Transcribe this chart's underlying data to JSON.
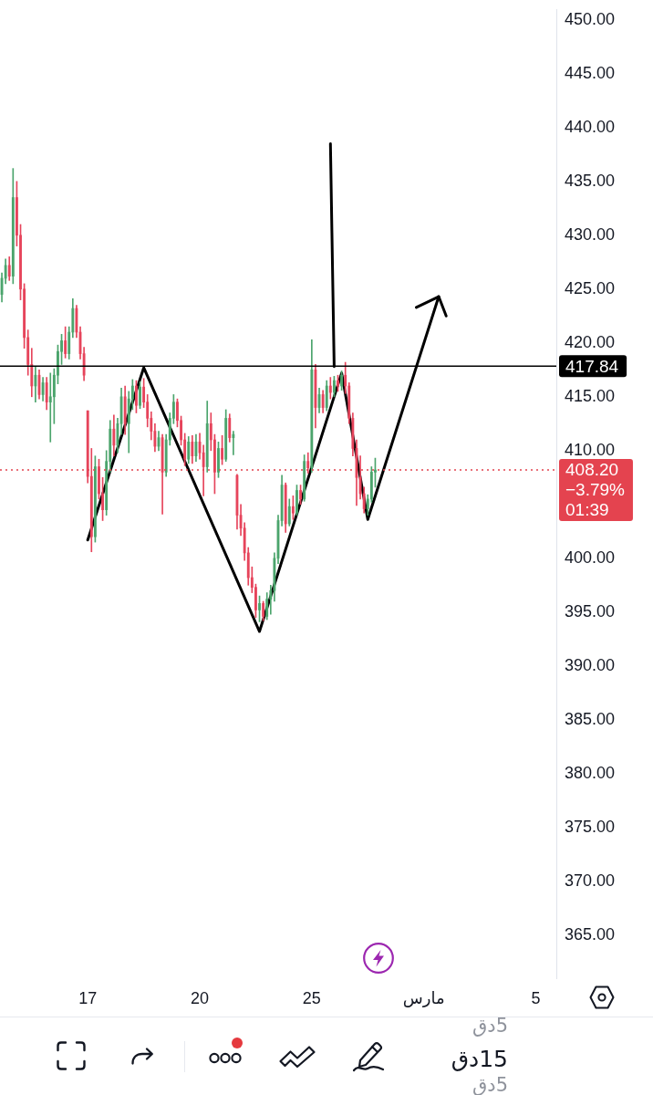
{
  "chart_data": {
    "type": "candlestick",
    "categories": [
      null,
      null,
      null,
      null,
      null,
      null,
      null,
      null,
      null,
      null,
      null,
      null,
      null,
      null,
      null,
      null,
      null,
      null,
      null,
      null,
      null,
      null,
      null,
      "17",
      null,
      null,
      null,
      null,
      null,
      null,
      null,
      null,
      null,
      null,
      null,
      null,
      null,
      null,
      null,
      null,
      null,
      null,
      null,
      null,
      null,
      null,
      null,
      null,
      null,
      null,
      null,
      null,
      null,
      "20",
      null,
      null,
      null,
      null,
      null,
      null,
      null,
      null,
      null,
      null,
      null,
      null,
      null,
      null,
      null,
      null,
      null,
      null,
      null,
      null,
      null,
      null,
      null,
      null,
      null,
      null,
      null,
      null,
      null,
      "25",
      null,
      null,
      null,
      null,
      null,
      null,
      null,
      null,
      null,
      null,
      null,
      null,
      null,
      null,
      null,
      null,
      null,
      null,
      null,
      null,
      null,
      null,
      null,
      null,
      null,
      null,
      null,
      null,
      null,
      "مارس",
      null,
      null,
      null,
      null,
      null,
      null,
      null,
      null,
      null,
      null,
      null,
      null,
      null,
      null,
      null,
      null,
      null,
      null,
      null,
      null,
      null,
      null,
      null,
      null,
      null,
      null,
      null,
      null,
      null,
      "5",
      null,
      null,
      null,
      null,
      null
    ],
    "ohlc": [
      [
        424.5,
        426.5,
        423.8,
        426.0
      ],
      [
        426.0,
        427.8,
        425.5,
        427.2
      ],
      [
        427.2,
        428.0,
        425.8,
        426.2
      ],
      [
        426.2,
        436.2,
        425.5,
        433.5
      ],
      [
        433.5,
        435.0,
        429.0,
        430.0
      ],
      [
        430.0,
        431.0,
        424.0,
        425.0
      ],
      [
        425.0,
        425.5,
        419.5,
        420.5
      ],
      [
        420.5,
        421.2,
        417.0,
        418.0
      ],
      [
        418.0,
        419.5,
        415.0,
        416.0
      ],
      [
        416.0,
        417.8,
        414.5,
        417.0
      ],
      [
        417.0,
        417.5,
        414.8,
        415.2
      ],
      [
        415.2,
        416.8,
        414.6,
        416.3
      ],
      [
        416.3,
        416.8,
        413.8,
        414.5
      ],
      [
        414.5,
        417.2,
        410.8,
        415.0
      ],
      [
        415.0,
        417.6,
        412.5,
        417.0
      ],
      [
        417.0,
        419.8,
        416.2,
        419.2
      ],
      [
        419.2,
        420.8,
        418.0,
        420.2
      ],
      [
        420.2,
        421.5,
        418.6,
        419.0
      ],
      [
        419.0,
        421.5,
        418.5,
        421.0
      ],
      [
        421.0,
        424.1,
        420.5,
        423.2
      ],
      [
        423.2,
        423.5,
        420.5,
        421.0
      ],
      [
        421.0,
        421.5,
        418.5,
        419.0
      ],
      [
        419.0,
        419.6,
        416.5,
        417.0
      ],
      [
        413.7,
        413.7,
        407.0,
        407.6
      ],
      [
        407.6,
        410.2,
        400.6,
        402.0
      ],
      [
        402.0,
        409.5,
        401.5,
        408.5
      ],
      [
        408.5,
        409.2,
        405.5,
        406.0
      ],
      [
        406.0,
        407.5,
        403.5,
        404.5
      ],
      [
        404.5,
        410.0,
        404.0,
        409.0
      ],
      [
        409.0,
        412.8,
        408.0,
        412.0
      ],
      [
        412.0,
        413.3,
        409.5,
        410.5
      ],
      [
        410.5,
        413.0,
        409.8,
        412.5
      ],
      [
        412.5,
        415.8,
        411.5,
        415.0
      ],
      [
        415.0,
        416.0,
        411.5,
        412.5
      ],
      [
        412.5,
        415.5,
        409.8,
        414.8
      ],
      [
        414.8,
        416.6,
        413.8,
        416.0
      ],
      [
        416.0,
        416.5,
        413.5,
        414.2
      ],
      [
        414.2,
        416.4,
        413.9,
        415.9
      ],
      [
        415.9,
        416.7,
        414.0,
        414.5
      ],
      [
        414.5,
        415.2,
        412.2,
        413.0
      ],
      [
        413.0,
        413.6,
        411.0,
        411.8
      ],
      [
        411.8,
        412.5,
        409.9,
        410.4
      ],
      [
        410.4,
        411.8,
        410.0,
        411.2
      ],
      [
        411.2,
        411.5,
        404.1,
        408.0
      ],
      [
        408.0,
        411.5,
        407.6,
        411.0
      ],
      [
        411.0,
        413.5,
        410.5,
        413.0
      ],
      [
        413.0,
        415.2,
        412.5,
        414.5
      ],
      [
        414.5,
        414.8,
        412.2,
        412.8
      ],
      [
        412.8,
        413.2,
        410.5,
        411.0
      ],
      [
        411.0,
        411.6,
        408.6,
        409.2
      ],
      [
        409.2,
        411.3,
        408.8,
        410.8
      ],
      [
        410.8,
        411.4,
        408.8,
        409.5
      ],
      [
        409.5,
        411.5,
        409.0,
        410.8
      ],
      [
        410.8,
        411.6,
        409.2,
        409.8
      ],
      [
        409.8,
        410.5,
        405.8,
        408.5
      ],
      [
        408.5,
        414.6,
        408.0,
        412.5
      ],
      [
        412.5,
        413.5,
        410.0,
        411.0
      ],
      [
        411.0,
        411.5,
        406.0,
        408.0
      ],
      [
        408.0,
        410.8,
        407.5,
        410.2
      ],
      [
        410.2,
        411.4,
        408.7,
        409.2
      ],
      [
        409.2,
        413.8,
        409.0,
        413.0
      ],
      [
        413.0,
        413.4,
        410.8,
        411.2
      ],
      [
        411.2,
        411.8,
        409.6,
        411.5
      ],
      [
        407.7,
        407.8,
        402.7,
        404.0
      ],
      [
        404.0,
        405.0,
        402.1,
        402.8
      ],
      [
        402.8,
        403.3,
        399.8,
        400.5
      ],
      [
        400.5,
        401.0,
        397.5,
        398.2
      ],
      [
        398.2,
        399.2,
        396.8,
        397.3
      ],
      [
        397.3,
        397.6,
        394.5,
        395.2
      ],
      [
        395.2,
        396.5,
        394.1,
        395.8
      ],
      [
        395.8,
        396.0,
        394.2,
        394.6
      ],
      [
        394.6,
        396.8,
        394.3,
        396.2
      ],
      [
        396.2,
        397.5,
        394.8,
        397.0
      ],
      [
        397.0,
        400.5,
        396.0,
        400.0
      ],
      [
        400.0,
        404.0,
        399.5,
        403.5
      ],
      [
        403.5,
        407.7,
        403.0,
        406.8
      ],
      [
        406.8,
        407.0,
        402.4,
        403.2
      ],
      [
        403.2,
        405.5,
        403.0,
        404.8
      ],
      [
        404.8,
        405.8,
        403.6,
        404.2
      ],
      [
        404.2,
        406.8,
        404.0,
        406.3
      ],
      [
        406.3,
        406.8,
        405.0,
        405.5
      ],
      [
        405.5,
        409.6,
        405.3,
        409.0
      ],
      [
        409.0,
        409.8,
        407.9,
        408.4
      ],
      [
        408.4,
        420.3,
        408.0,
        417.5
      ],
      [
        417.5,
        418.0,
        412.1,
        414.0
      ],
      [
        414.0,
        415.8,
        413.5,
        415.2
      ],
      [
        415.2,
        415.6,
        413.5,
        414.0
      ],
      [
        414.0,
        416.5,
        413.7,
        416.0
      ],
      [
        416.0,
        416.8,
        414.8,
        415.4
      ],
      [
        415.4,
        416.9,
        415.0,
        416.5
      ],
      [
        416.5,
        417.0,
        415.5,
        416.0
      ],
      [
        416.0,
        417.4,
        415.6,
        417.0
      ],
      [
        417.0,
        418.2,
        415.3,
        416.0
      ],
      [
        416.0,
        416.3,
        412.5,
        413.0
      ],
      [
        413.0,
        413.5,
        409.5,
        410.2
      ],
      [
        410.2,
        411.0,
        404.9,
        407.5
      ],
      [
        407.5,
        409.5,
        405.5,
        406.0
      ],
      [
        406.0,
        406.6,
        404.2,
        404.6
      ],
      [
        404.6,
        405.9,
        404.0,
        405.5
      ],
      [
        405.5,
        408.5,
        405.2,
        408.0
      ],
      [
        408.0,
        409.3,
        406.6,
        408.2
      ],
      null,
      null,
      null,
      null,
      null,
      null,
      null,
      null,
      null,
      null,
      null,
      null,
      null,
      null,
      null,
      null,
      null,
      null,
      null,
      null,
      null,
      null,
      null,
      null,
      null,
      null,
      null,
      null,
      null,
      null,
      null,
      null,
      null,
      null,
      null,
      null,
      null,
      null,
      null,
      null,
      null,
      null,
      null,
      null,
      null,
      null,
      null,
      null
    ],
    "colors": [
      "#4ba46c",
      "#4ba46c",
      "#e6445b",
      "#4ba46c",
      "#e6445b",
      "#e6445b",
      "#e6445b",
      "#e6445b",
      "#e6445b",
      "#4ba46c",
      "#e6445b",
      "#4ba46c",
      "#e6445b",
      "#4ba46c",
      "#4ba46c",
      "#4ba46c",
      "#4ba46c",
      "#e6445b",
      "#4ba46c",
      "#4ba46c",
      "#e6445b",
      "#e6445b",
      "#e6445b",
      "#e6445b",
      "#e6445b",
      "#4ba46c",
      "#e6445b",
      "#e6445b",
      "#4ba46c",
      "#4ba46c",
      "#e6445b",
      "#4ba46c",
      "#4ba46c",
      "#e6445b",
      "#4ba46c",
      "#4ba46c",
      "#e6445b",
      "#4ba46c",
      "#e6445b",
      "#e6445b",
      "#e6445b",
      "#e6445b",
      "#4ba46c",
      "#e6445b",
      "#4ba46c",
      "#4ba46c",
      "#4ba46c",
      "#e6445b",
      "#e6445b",
      "#e6445b",
      "#4ba46c",
      "#e6445b",
      "#4ba46c",
      "#e6445b",
      "#e6445b",
      "#4ba46c",
      "#e6445b",
      "#e6445b",
      "#4ba46c",
      "#e6445b",
      "#4ba46c",
      "#e6445b",
      "#4ba46c",
      "#e6445b",
      "#e6445b",
      "#e6445b",
      "#e6445b",
      "#e6445b",
      "#e6445b",
      "#4ba46c",
      "#e6445b",
      "#4ba46c",
      "#4ba46c",
      "#4ba46c",
      "#4ba46c",
      "#4ba46c",
      "#e6445b",
      "#4ba46c",
      "#e6445b",
      "#4ba46c",
      "#e6445b",
      "#4ba46c",
      "#e6445b",
      "#4ba46c",
      "#e6445b",
      "#4ba46c",
      "#e6445b",
      "#4ba46c",
      "#e6445b",
      "#4ba46c",
      "#e6445b",
      "#4ba46c",
      "#e6445b",
      "#e6445b",
      "#e6445b",
      "#e6445b",
      "#e6445b",
      "#e6445b",
      "#4ba46c",
      "#4ba46c",
      "#4ba46c",
      null,
      null,
      null,
      null,
      null,
      null,
      null,
      null,
      null,
      null,
      null,
      null,
      null,
      null,
      null,
      null,
      null,
      null,
      null,
      null,
      null,
      null,
      null,
      null,
      null,
      null,
      null,
      null,
      null,
      null,
      null,
      null,
      null,
      null,
      null,
      null,
      null,
      null,
      null,
      null,
      null,
      null,
      null,
      null,
      null,
      null,
      null,
      null
    ],
    "series": [
      {
        "type": "line",
        "color": "#000000",
        "values": [
          null,
          null,
          null,
          null,
          null,
          null,
          null,
          null,
          null,
          null,
          null,
          null,
          null,
          null,
          null,
          null,
          null,
          null,
          null,
          null,
          null,
          null,
          null,
          401.7,
          null,
          null,
          null,
          null,
          null,
          null,
          null,
          null,
          null,
          null,
          null,
          null,
          null,
          null,
          417.7,
          null,
          null,
          null,
          null,
          null,
          null,
          null,
          null,
          null,
          null,
          null,
          null,
          null,
          null,
          null,
          null,
          null,
          null,
          null,
          null,
          null,
          null,
          null,
          null,
          null,
          null,
          null,
          null,
          null,
          null,
          393.2,
          null,
          null,
          null,
          null,
          null,
          null,
          null,
          null,
          null,
          null,
          null,
          null,
          null,
          null,
          null,
          null,
          null,
          null,
          null,
          null,
          null,
          417.2,
          null,
          null,
          null,
          null,
          null,
          null,
          403.6,
          null,
          null,
          null,
          null,
          null,
          null,
          null,
          null,
          null,
          null,
          null,
          null,
          null,
          null,
          null,
          null,
          null,
          null,
          424.3,
          null,
          null,
          null,
          null,
          null,
          null,
          null,
          null,
          null,
          null,
          null,
          null,
          null,
          null,
          null,
          null,
          null,
          null,
          null,
          null,
          null,
          null,
          null,
          null,
          null,
          null,
          null,
          null,
          null,
          null,
          null
        ]
      },
      {
        "type": "line",
        "color": "#000000",
        "values": [
          null,
          null,
          null,
          null,
          null,
          null,
          null,
          null,
          null,
          null,
          null,
          null,
          null,
          null,
          null,
          null,
          null,
          null,
          null,
          null,
          null,
          null,
          null,
          null,
          null,
          null,
          null,
          null,
          null,
          null,
          null,
          null,
          null,
          null,
          null,
          null,
          null,
          null,
          null,
          null,
          null,
          null,
          null,
          null,
          null,
          null,
          null,
          null,
          null,
          null,
          null,
          null,
          null,
          null,
          null,
          null,
          null,
          null,
          null,
          null,
          null,
          null,
          null,
          null,
          null,
          null,
          null,
          null,
          null,
          null,
          null,
          null,
          null,
          null,
          null,
          null,
          null,
          null,
          null,
          null,
          null,
          null,
          null,
          null,
          null,
          null,
          null,
          null,
          null,
          null,
          null,
          null,
          null,
          null,
          null,
          null,
          null,
          null,
          null,
          null,
          null,
          null,
          null,
          null,
          null,
          null,
          null,
          null,
          null,
          null,
          null,
          423.3,
          null,
          null,
          null,
          null,
          null,
          424.3,
          null,
          422.5,
          null,
          null,
          null,
          null,
          null,
          null,
          null,
          null,
          null,
          null,
          null,
          null,
          null,
          null,
          null,
          null,
          null,
          null,
          null,
          null,
          null,
          null,
          null,
          null,
          null,
          null,
          null,
          null,
          null
        ]
      },
      {
        "type": "line",
        "color": "#000000",
        "values": [
          null,
          null,
          null,
          null,
          null,
          null,
          null,
          null,
          null,
          null,
          null,
          null,
          null,
          null,
          null,
          null,
          null,
          null,
          null,
          null,
          null,
          null,
          null,
          null,
          null,
          null,
          null,
          null,
          null,
          null,
          null,
          null,
          null,
          null,
          null,
          null,
          null,
          null,
          null,
          null,
          null,
          null,
          null,
          null,
          null,
          null,
          null,
          null,
          null,
          null,
          null,
          null,
          null,
          null,
          null,
          null,
          null,
          null,
          null,
          null,
          null,
          null,
          null,
          null,
          null,
          null,
          null,
          null,
          null,
          null,
          null,
          null,
          null,
          null,
          null,
          null,
          null,
          null,
          null,
          null,
          null,
          null,
          null,
          null,
          null,
          null,
          null,
          null,
          438.5,
          417.8,
          null,
          null,
          null,
          null,
          null,
          null,
          null,
          null,
          null,
          null,
          null,
          null,
          null,
          null,
          null,
          null,
          null,
          null,
          null,
          null,
          null,
          null,
          null,
          null,
          null,
          null,
          null,
          null,
          null,
          null,
          null,
          null,
          null,
          null,
          null,
          null,
          null,
          null,
          null,
          null,
          null,
          null,
          null,
          null,
          null,
          null,
          null,
          null,
          null,
          null,
          null,
          null,
          null,
          null,
          null,
          null,
          null,
          null,
          null
        ]
      }
    ],
    "ylim": [
      361,
      451
    ],
    "yticks": [
      {
        "value": 450,
        "label": "450.00"
      },
      {
        "value": 445,
        "label": "445.00"
      },
      {
        "value": 440,
        "label": "440.00"
      },
      {
        "value": 435,
        "label": "435.00"
      },
      {
        "value": 430,
        "label": "430.00"
      },
      {
        "value": 425,
        "label": "425.00"
      },
      {
        "value": 420,
        "label": "420.00"
      },
      {
        "value": 415,
        "label": "415.00"
      },
      {
        "value": 410,
        "label": "410.00"
      },
      {
        "value": 400,
        "label": "400.00"
      },
      {
        "value": 395,
        "label": "395.00"
      },
      {
        "value": 390,
        "label": "390.00"
      },
      {
        "value": 385,
        "label": "385.00"
      },
      {
        "value": 380,
        "label": "380.00"
      },
      {
        "value": 375,
        "label": "375.00"
      },
      {
        "value": 370,
        "label": "370.00"
      },
      {
        "value": 365,
        "label": "365.00"
      }
    ],
    "ref_lines": [
      {
        "axis": "y",
        "value": 417.84,
        "label": "417.84",
        "color": "#000000"
      },
      {
        "axis": "y",
        "value": 408.2,
        "label": "408.20",
        "color": "#e4434f",
        "line_style": "dotted"
      }
    ],
    "annotations": [
      "−3.79%",
      "01:39",
      "5دق",
      "15دق",
      "5دق"
    ]
  }
}
